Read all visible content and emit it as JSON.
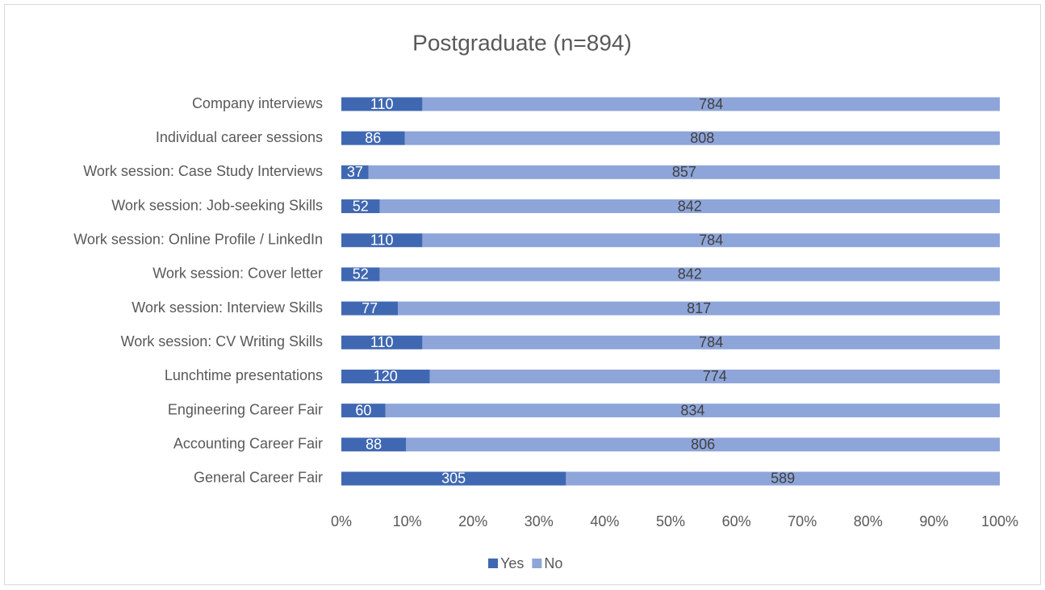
{
  "chart_data": {
    "type": "bar",
    "orientation": "horizontal",
    "stack": "percent",
    "title": "Postgraduate (n=894)",
    "categories": [
      "Company interviews",
      "Individual career sessions",
      "Work session: Case Study Interviews",
      "Work session: Job-seeking Skills",
      "Work session: Online Profile / LinkedIn",
      "Work session: Cover letter",
      "Work session: Interview Skills",
      "Work session: CV Writing Skills",
      "Lunchtime presentations",
      "Engineering Career Fair",
      "Accounting Career Fair",
      "General Career Fair"
    ],
    "series": [
      {
        "name": "Yes",
        "color": "#4068b2",
        "label_color": "#ffffff",
        "values": [
          110,
          86,
          37,
          52,
          110,
          52,
          77,
          110,
          120,
          60,
          88,
          305
        ]
      },
      {
        "name": "No",
        "color": "#8ea5d9",
        "label_color": "#404040",
        "values": [
          784,
          808,
          857,
          842,
          784,
          842,
          817,
          784,
          774,
          834,
          806,
          589
        ]
      }
    ],
    "xlim": [
      0,
      100
    ],
    "xticks": [
      {
        "value": 0,
        "label": "0%"
      },
      {
        "value": 10,
        "label": "10%"
      },
      {
        "value": 20,
        "label": "20%"
      },
      {
        "value": 30,
        "label": "30%"
      },
      {
        "value": 40,
        "label": "40%"
      },
      {
        "value": 50,
        "label": "50%"
      },
      {
        "value": 60,
        "label": "60%"
      },
      {
        "value": 70,
        "label": "70%"
      },
      {
        "value": 80,
        "label": "80%"
      },
      {
        "value": 90,
        "label": "90%"
      },
      {
        "value": 100,
        "label": "100%"
      }
    ],
    "grid": false,
    "legend": "bottom"
  }
}
